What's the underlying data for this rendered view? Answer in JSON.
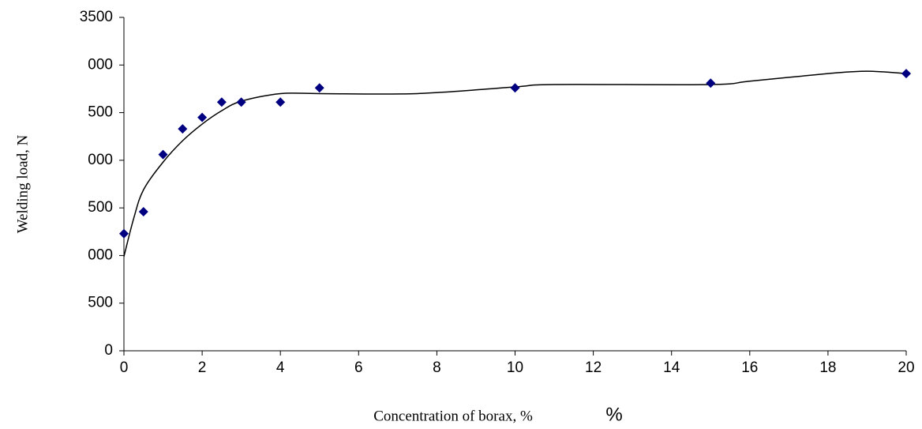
{
  "chart_data": {
    "type": "scatter",
    "x_label": "Concentration of borax, %",
    "x_label_unit": "%",
    "y_label": "Welding load, N",
    "xlim": [
      0,
      20
    ],
    "xticks": [
      0,
      2,
      4,
      6,
      8,
      10,
      12,
      14,
      16,
      18,
      20
    ],
    "ylim": [
      0,
      3500
    ],
    "yticks": [
      0,
      500,
      {
        "value": 1000,
        "label": "000"
      },
      {
        "value": 1500,
        "label": "500"
      },
      {
        "value": 2000,
        "label": "000"
      },
      {
        "value": 2500,
        "label": "500"
      },
      {
        "value": 3000,
        "label": "000"
      },
      3500
    ],
    "color": "#000080",
    "x": [
      0,
      0.5,
      1,
      1.5,
      2,
      2.5,
      3,
      4,
      5,
      10,
      15,
      20
    ],
    "values": [
      1230,
      1460,
      2060,
      2330,
      2450,
      2610,
      2610,
      2610,
      2760,
      2760,
      2810,
      2910
    ],
    "trendline": {
      "color": "#000000",
      "x": [
        0,
        0.25,
        0.5,
        1,
        1.5,
        2,
        2.5,
        3,
        4,
        5,
        7.5,
        10,
        11,
        15,
        16,
        18,
        19,
        20
      ],
      "values": [
        990,
        1390,
        1690,
        1980,
        2205,
        2380,
        2520,
        2620,
        2700,
        2700,
        2700,
        2770,
        2795,
        2795,
        2830,
        2910,
        2935,
        2910
      ]
    }
  }
}
